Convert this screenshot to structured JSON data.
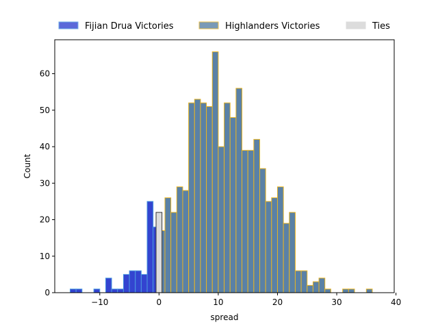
{
  "chart_data": {
    "type": "bar",
    "xlabel": "spread",
    "ylabel": "Count",
    "xlim": [
      -17.6,
      39.7
    ],
    "ylim": [
      0,
      69.3
    ],
    "xticks": [
      -10,
      0,
      10,
      20,
      30,
      40
    ],
    "yticks": [
      0,
      10,
      20,
      30,
      40,
      50,
      60
    ],
    "bin_width": 1,
    "legend_position": "top, outside plot",
    "series": [
      {
        "name": "Fijian Drua Victories",
        "color": "#3344d0",
        "edge_color": "#4c9be0",
        "bins": [
          {
            "x": -15,
            "count": 1
          },
          {
            "x": -14,
            "count": 1
          },
          {
            "x": -11,
            "count": 1
          },
          {
            "x": -9,
            "count": 4
          },
          {
            "x": -8,
            "count": 1
          },
          {
            "x": -7,
            "count": 1
          },
          {
            "x": -6,
            "count": 5
          },
          {
            "x": -5,
            "count": 6
          },
          {
            "x": -4,
            "count": 6
          },
          {
            "x": -3,
            "count": 5
          },
          {
            "x": -2,
            "count": 25
          },
          {
            "x": -1,
            "count": 18
          }
        ]
      },
      {
        "name": "Highlanders Victories",
        "color": "#5a81a6",
        "edge_color": "#e8b423",
        "bins": [
          {
            "x": 0,
            "count": 17
          },
          {
            "x": 1,
            "count": 26
          },
          {
            "x": 2,
            "count": 22
          },
          {
            "x": 3,
            "count": 29
          },
          {
            "x": 4,
            "count": 28
          },
          {
            "x": 5,
            "count": 52
          },
          {
            "x": 6,
            "count": 53
          },
          {
            "x": 7,
            "count": 52
          },
          {
            "x": 8,
            "count": 51
          },
          {
            "x": 9,
            "count": 66
          },
          {
            "x": 10,
            "count": 40
          },
          {
            "x": 11,
            "count": 52
          },
          {
            "x": 12,
            "count": 48
          },
          {
            "x": 13,
            "count": 56
          },
          {
            "x": 14,
            "count": 39
          },
          {
            "x": 15,
            "count": 39
          },
          {
            "x": 16,
            "count": 42
          },
          {
            "x": 17,
            "count": 34
          },
          {
            "x": 18,
            "count": 25
          },
          {
            "x": 19,
            "count": 26
          },
          {
            "x": 20,
            "count": 29
          },
          {
            "x": 21,
            "count": 19
          },
          {
            "x": 22,
            "count": 22
          },
          {
            "x": 23,
            "count": 6
          },
          {
            "x": 24,
            "count": 6
          },
          {
            "x": 25,
            "count": 2
          },
          {
            "x": 26,
            "count": 3
          },
          {
            "x": 27,
            "count": 4
          },
          {
            "x": 28,
            "count": 1
          },
          {
            "x": 31,
            "count": 1
          },
          {
            "x": 32,
            "count": 1
          },
          {
            "x": 35,
            "count": 1
          }
        ]
      },
      {
        "name": "Ties",
        "color": "#dcdcdc",
        "edge_color": "#333333",
        "bins": [
          {
            "x": -0.5,
            "count": 22
          }
        ]
      }
    ]
  }
}
